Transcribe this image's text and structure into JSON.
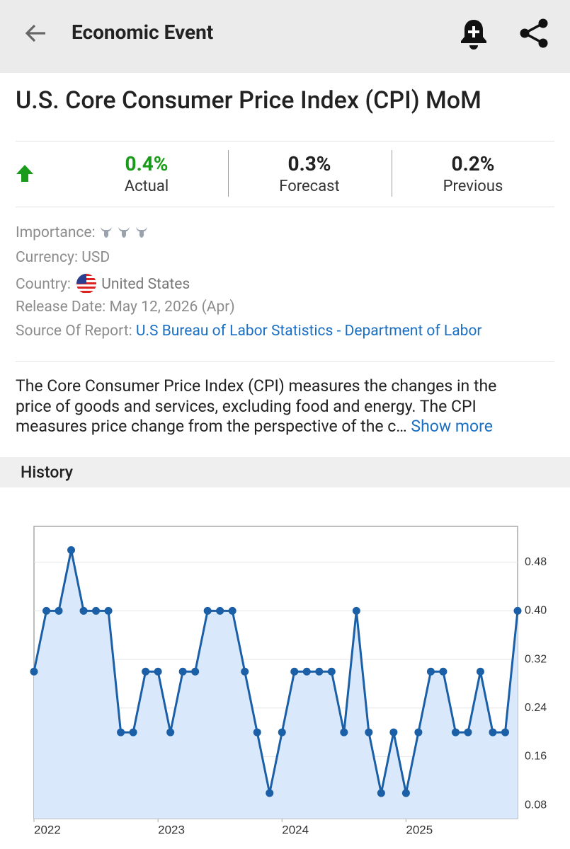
{
  "header": {
    "title": "Economic Event"
  },
  "event": {
    "title": "U.S. Core Consumer Price Index (CPI) MoM"
  },
  "stats": [
    {
      "value": "0.4%",
      "label": "Actual"
    },
    {
      "value": "0.3%",
      "label": "Forecast"
    },
    {
      "value": "0.2%",
      "label": "Previous"
    }
  ],
  "details": {
    "importance": {
      "label": "Importance:"
    },
    "currency": {
      "label": "Currency:",
      "value": "USD"
    },
    "country": {
      "label": "Country:",
      "value": "United States"
    },
    "release_date": {
      "label": "Release Date:",
      "value": "May 12, 2026 (Apr)"
    },
    "source": {
      "label": "Source Of Report:",
      "value": "U.S Bureau of Labor Statistics - Department of Labor"
    }
  },
  "description": {
    "lines": [
      "The Core Consumer Price Index (CPI) measures the changes in the",
      "price of goods and services, excluding food and energy. The CPI",
      "measures price change from the perspective of the c…"
    ],
    "show_more": "Show more"
  },
  "history": {
    "title": "History"
  },
  "chart_data": {
    "type": "line",
    "categories": [
      "2022",
      null,
      null,
      null,
      null,
      null,
      null,
      null,
      null,
      null,
      "2023",
      null,
      null,
      null,
      null,
      null,
      null,
      null,
      null,
      null,
      "2024",
      null,
      null,
      null,
      null,
      null,
      null,
      null,
      null,
      null,
      "2025",
      null,
      null,
      null,
      null,
      null,
      null,
      null,
      null,
      null
    ],
    "values": [
      0.3,
      0.4,
      0.4,
      0.5,
      0.4,
      0.4,
      0.4,
      0.2,
      0.2,
      0.3,
      0.3,
      0.2,
      0.3,
      0.3,
      0.4,
      0.4,
      0.4,
      0.3,
      0.2,
      0.1,
      0.2,
      0.3,
      0.3,
      0.3,
      0.3,
      0.2,
      0.4,
      0.2,
      0.1,
      0.2,
      0.1,
      0.2,
      0.3,
      0.3,
      0.2,
      0.2,
      0.3,
      0.2,
      0.2,
      0.4
    ],
    "color": "#1b5fa6",
    "area_color": "#d9e8fb",
    "ylim": [
      0.058,
      0.539
    ],
    "yticks": [
      0.08,
      0.16,
      0.24,
      0.32,
      {
        "value": 0.4,
        "label": "0.40"
      },
      0.48
    ],
    "y_axis_side": "right",
    "grid": true
  }
}
